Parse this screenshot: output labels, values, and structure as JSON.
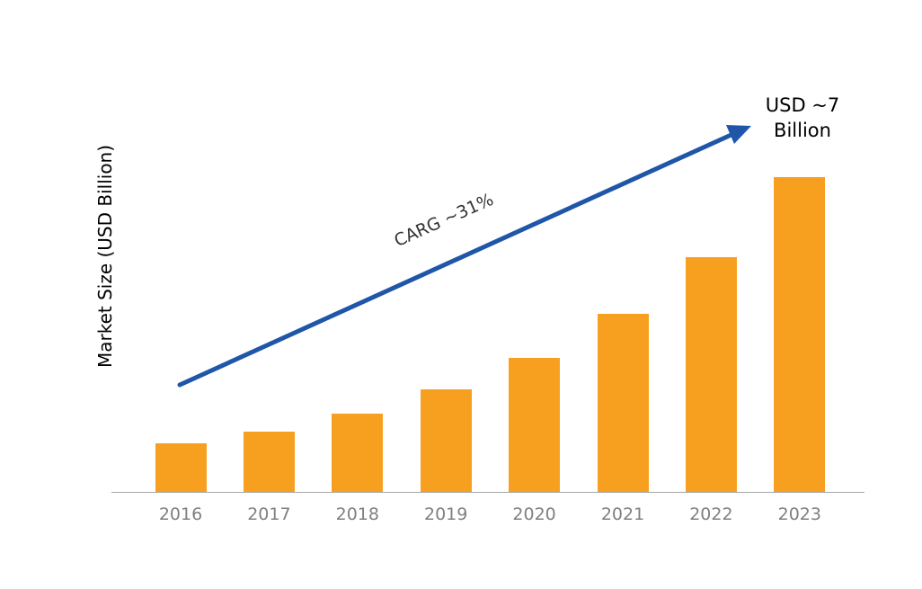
{
  "chart_data": {
    "type": "bar",
    "title": "",
    "xlabel": "",
    "ylabel": "Market Size (USD Billion)",
    "categories": [
      "2016",
      "2017",
      "2018",
      "2019",
      "2020",
      "2021",
      "2022",
      "2023"
    ],
    "values": [
      1.08,
      1.34,
      1.74,
      2.28,
      2.98,
      3.96,
      5.22,
      7.0
    ],
    "ylim": [
      0,
      7.5
    ],
    "grid": false,
    "bar_color": "#f7a01f",
    "annotations": [
      {
        "text": "USD ~7 Billion",
        "position": "top-right, at arrow head"
      },
      {
        "text": "CARG ~31%",
        "position": "along trend arrow"
      }
    ],
    "trend_arrow": {
      "color": "#1f56a8",
      "from": [
        2016,
        "low"
      ],
      "to": [
        2023,
        "high"
      ]
    }
  },
  "labels": {
    "ylabel": "Market Size (USD Billion)",
    "annot_line1": "USD ~7",
    "annot_line2": "Billion",
    "cagr": "CARG ~31%"
  }
}
